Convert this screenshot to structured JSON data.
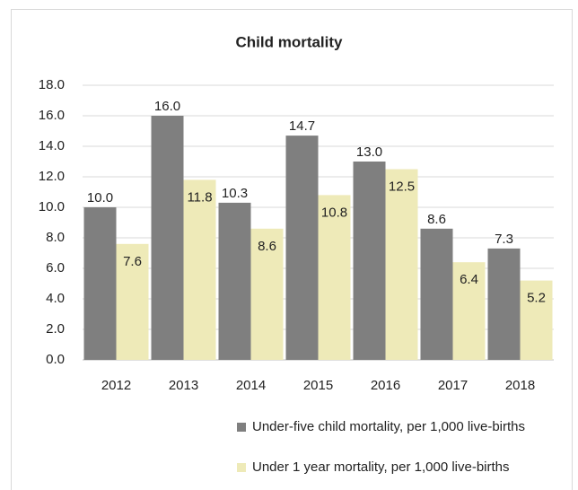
{
  "chart_data": {
    "type": "bar",
    "title": "Child mortality",
    "categories": [
      "2012",
      "2013",
      "2014",
      "2015",
      "2016",
      "2017",
      "2018"
    ],
    "series": [
      {
        "name": "Under-five child mortality, per 1,000 live-births",
        "color": "#7f7f7f",
        "values": [
          10,
          16,
          10.3,
          14.7,
          13,
          8.6,
          7.3
        ],
        "value_labels": [
          "10.0",
          "16.0",
          "10.3",
          "14.7",
          "13.0",
          "8.6",
          "7.3"
        ]
      },
      {
        "name": "Under 1 year mortality, per 1,000 live-births",
        "color": "#eeeab8",
        "values": [
          7.6,
          11.8,
          8.6,
          10.8,
          12.5,
          6.4,
          5.2
        ],
        "value_labels": [
          "7.6",
          "11.8",
          "8.6",
          "10.8",
          "12.5",
          "6.4",
          "5.2"
        ]
      }
    ],
    "ylim": [
      0,
      18
    ],
    "yticks": [
      {
        "value": 0,
        "label": "0.0"
      },
      {
        "value": 2,
        "label": "2.0"
      },
      {
        "value": 4,
        "label": "4.0"
      },
      {
        "value": 6,
        "label": "6.0"
      },
      {
        "value": 8,
        "label": "8.0"
      },
      {
        "value": 10,
        "label": "10.0"
      },
      {
        "value": 12,
        "label": "12.0"
      },
      {
        "value": 14,
        "label": "14.0"
      },
      {
        "value": 16,
        "label": "16.0"
      },
      {
        "value": 18,
        "label": "18.0"
      }
    ],
    "grid": true,
    "legend": "bottom"
  }
}
